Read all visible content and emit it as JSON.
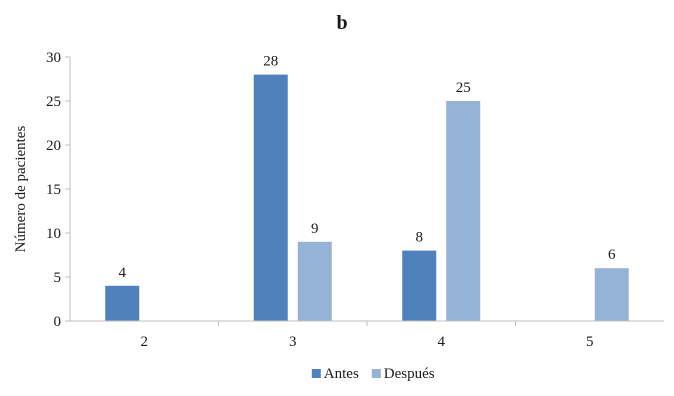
{
  "chart_data": {
    "type": "bar",
    "title": "b",
    "xlabel": "",
    "ylabel": "Número de pacientes",
    "categories": [
      "2",
      "3",
      "4",
      "5"
    ],
    "series": [
      {
        "name": "Antes",
        "values": [
          4,
          28,
          8,
          null
        ],
        "color": "#4f81bd"
      },
      {
        "name": "Después",
        "values": [
          null,
          9,
          25,
          6
        ],
        "color": "#95b3d7"
      }
    ],
    "ylim": [
      0,
      30
    ],
    "yticks": [
      "0",
      "5",
      "10",
      "15",
      "20",
      "25",
      "30"
    ],
    "grid": false,
    "legend_position": "bottom-center"
  }
}
